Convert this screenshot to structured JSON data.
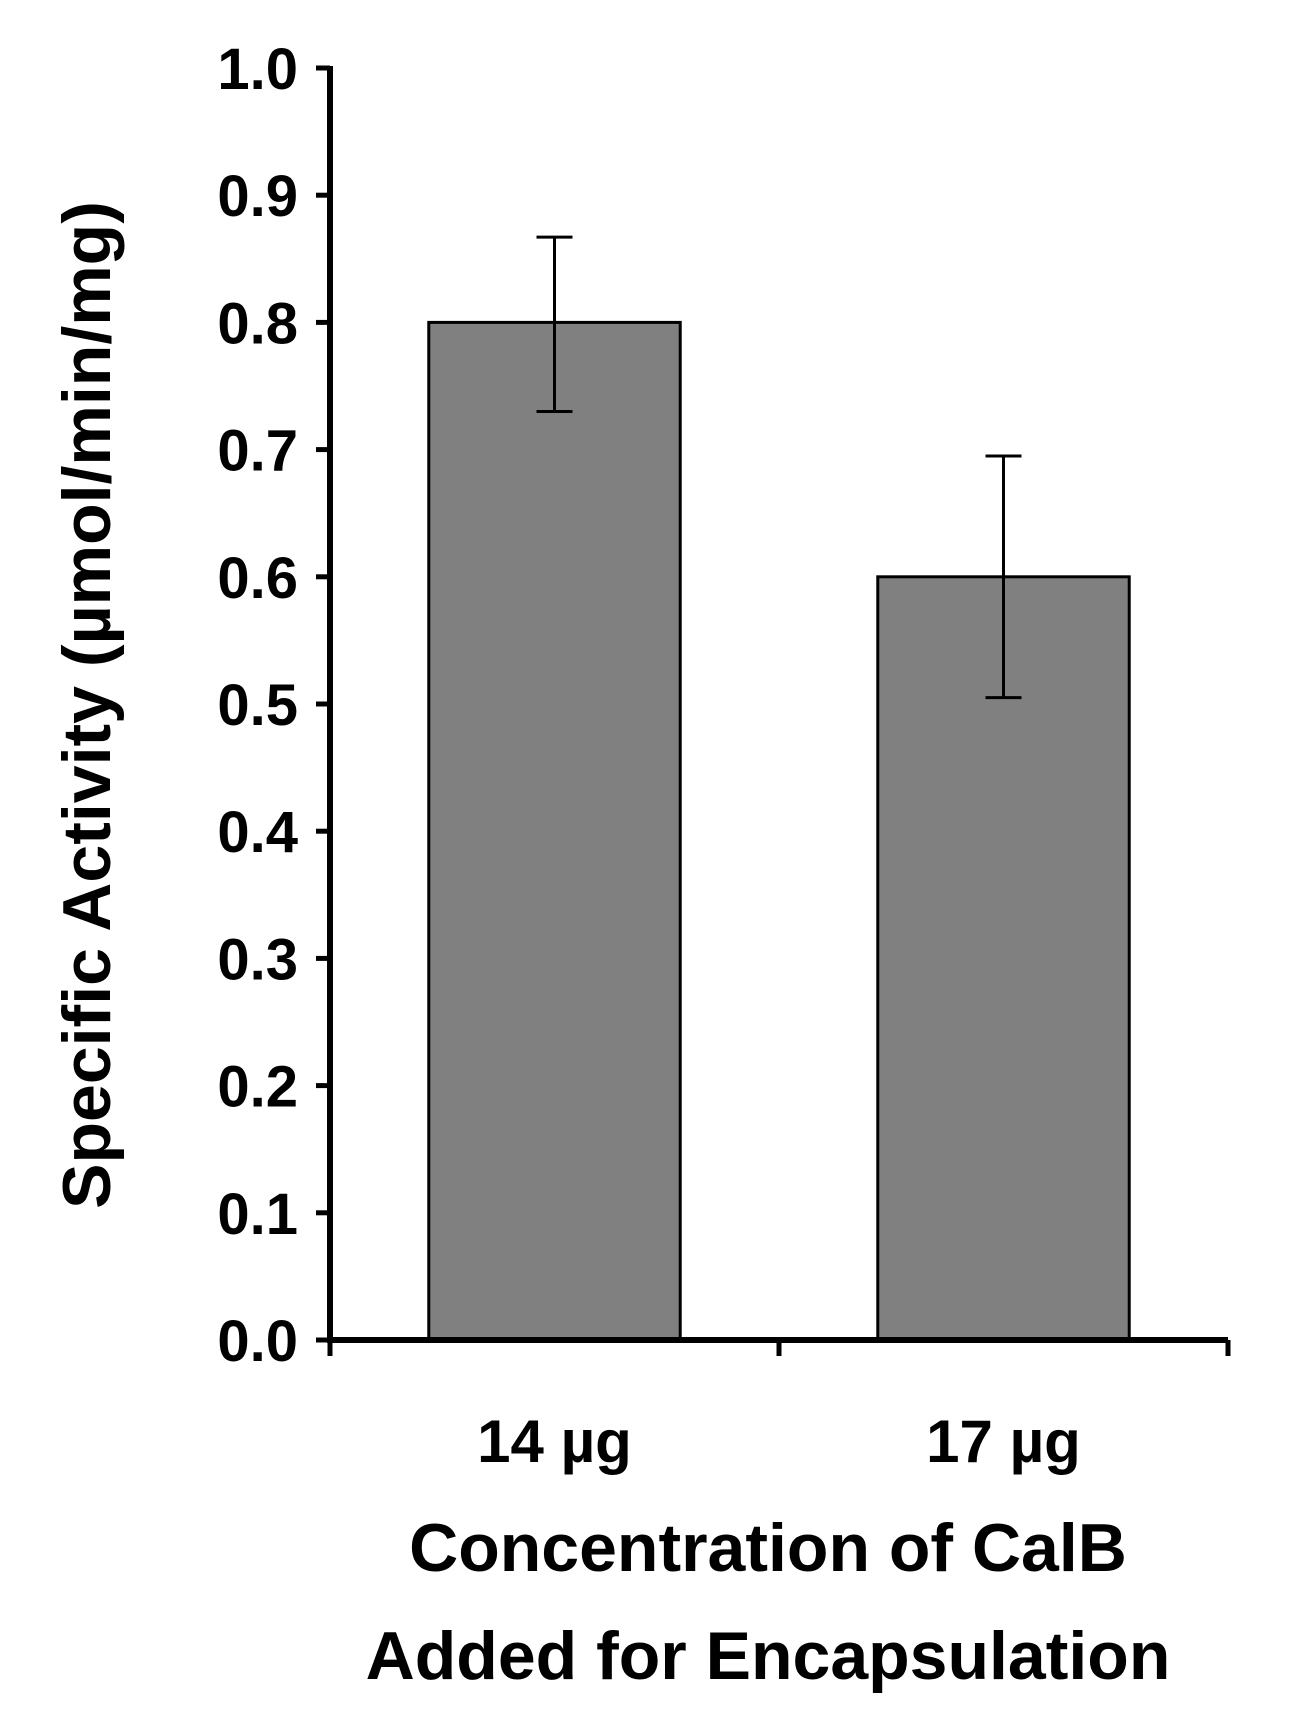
{
  "chart_data": {
    "type": "bar",
    "title": "",
    "categories": [
      "14 µg",
      "17 µg"
    ],
    "values": [
      0.8,
      0.6
    ],
    "error_high": [
      0.867,
      0.695
    ],
    "error_low": [
      0.73,
      0.505
    ],
    "ylabel": "Specific Activity (µmol/min/mg)",
    "xlabel_lines": [
      "Concentration of CalB",
      "Added for Encapsulation"
    ],
    "ylim": [
      0.0,
      1.0
    ],
    "yticks": [
      0.0,
      0.1,
      0.2,
      0.3,
      0.4,
      0.5,
      0.6,
      0.7,
      0.8,
      0.9,
      1.0
    ],
    "ytick_labels": [
      "0.0",
      "0.1",
      "0.2",
      "0.3",
      "0.4",
      "0.5",
      "0.6",
      "0.7",
      "0.8",
      "0.9",
      "1.0"
    ],
    "grid": false,
    "legend": "none",
    "colors": {
      "bar_fill": "#808080",
      "bar_stroke": "#000000",
      "axis": "#000000"
    }
  }
}
